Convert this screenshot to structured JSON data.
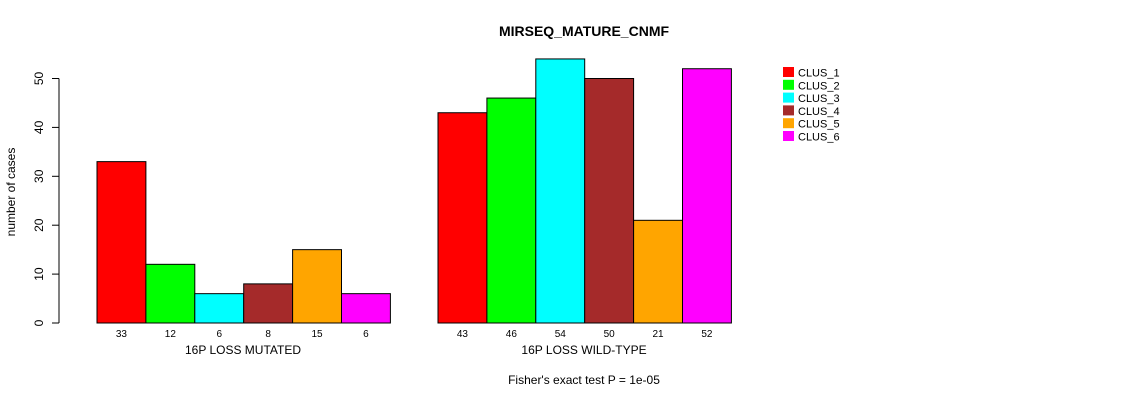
{
  "chart_data": {
    "type": "bar",
    "title": "MIRSEQ_MATURE_CNMF",
    "ylabel": "number of cases",
    "xlabel": "Fisher's exact test P = 1e-05",
    "ylim": [
      0,
      50
    ],
    "yticks": [
      0,
      10,
      20,
      30,
      40,
      50
    ],
    "grid": false,
    "legend_placement": "top-right",
    "groups": [
      "16P LOSS MUTATED",
      "16P LOSS WILD-TYPE"
    ],
    "series": [
      {
        "name": "CLUS_1",
        "color": "#ff0000",
        "values": [
          33,
          43
        ]
      },
      {
        "name": "CLUS_2",
        "color": "#00ff00",
        "values": [
          12,
          46
        ]
      },
      {
        "name": "CLUS_3",
        "color": "#00ffff",
        "values": [
          6,
          54
        ]
      },
      {
        "name": "CLUS_4",
        "color": "#a52a2a",
        "values": [
          8,
          50
        ]
      },
      {
        "name": "CLUS_5",
        "color": "#ffa500",
        "values": [
          15,
          21
        ]
      },
      {
        "name": "CLUS_6",
        "color": "#ff00ff",
        "values": [
          6,
          52
        ]
      }
    ]
  }
}
